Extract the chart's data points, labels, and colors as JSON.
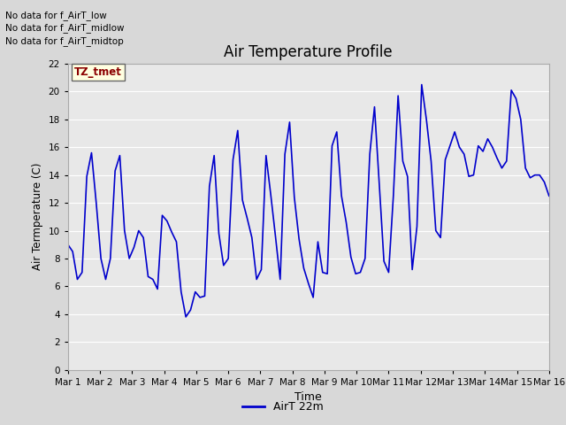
{
  "title": "Air Temperature Profile",
  "xlabel": "Time",
  "ylabel": "Air Termperature (C)",
  "ylim": [
    0,
    22
  ],
  "yticks": [
    0,
    2,
    4,
    6,
    8,
    10,
    12,
    14,
    16,
    18,
    20,
    22
  ],
  "x_labels": [
    "Mar 1",
    "Mar 2",
    "Mar 3",
    "Mar 4",
    "Mar 5",
    "Mar 6",
    "Mar 7",
    "Mar 8",
    "Mar 9",
    "Mar 10",
    "Mar 11",
    "Mar 12",
    "Mar 13",
    "Mar 14",
    "Mar 15",
    "Mar 16"
  ],
  "line_color": "#0000cc",
  "fig_bg_color": "#d8d8d8",
  "plot_bg_color": "#e8e8e8",
  "legend_label": "AirT 22m",
  "annotations": [
    "No data for f_AirT_low",
    "No data for f_AirT_midlow",
    "No data for f_AirT_midtop"
  ],
  "tz_label": "TZ_tmet",
  "y_values": [
    9.0,
    8.5,
    6.5,
    7.0,
    13.9,
    15.6,
    12.0,
    8.0,
    6.5,
    8.0,
    14.3,
    15.4,
    10.0,
    8.0,
    8.8,
    10.0,
    9.5,
    6.7,
    6.5,
    5.8,
    11.1,
    10.7,
    9.9,
    9.2,
    5.6,
    3.8,
    4.3,
    5.6,
    5.2,
    5.3,
    13.2,
    15.4,
    9.8,
    7.5,
    8.0,
    15.1,
    17.2,
    12.2,
    10.9,
    9.5,
    6.5,
    7.2,
    15.4,
    12.6,
    9.6,
    6.5,
    15.5,
    17.8,
    12.4,
    9.4,
    7.3,
    6.2,
    5.2,
    9.2,
    7.0,
    6.9,
    16.1,
    17.1,
    12.5,
    10.6,
    8.1,
    6.9,
    7.0,
    8.0,
    15.5,
    18.9,
    13.4,
    7.8,
    7.0,
    12.5,
    19.7,
    15.0,
    13.9,
    7.2,
    10.3,
    20.5,
    18.0,
    15.0,
    10.0,
    9.5,
    15.1,
    16.1,
    17.1,
    16.0,
    15.5,
    13.9,
    14.0,
    16.1,
    15.7,
    16.6,
    16.0,
    15.2,
    14.5,
    15.0,
    20.1,
    19.5,
    18.0,
    14.5,
    13.8,
    14.0,
    14.0,
    13.5,
    12.5
  ]
}
